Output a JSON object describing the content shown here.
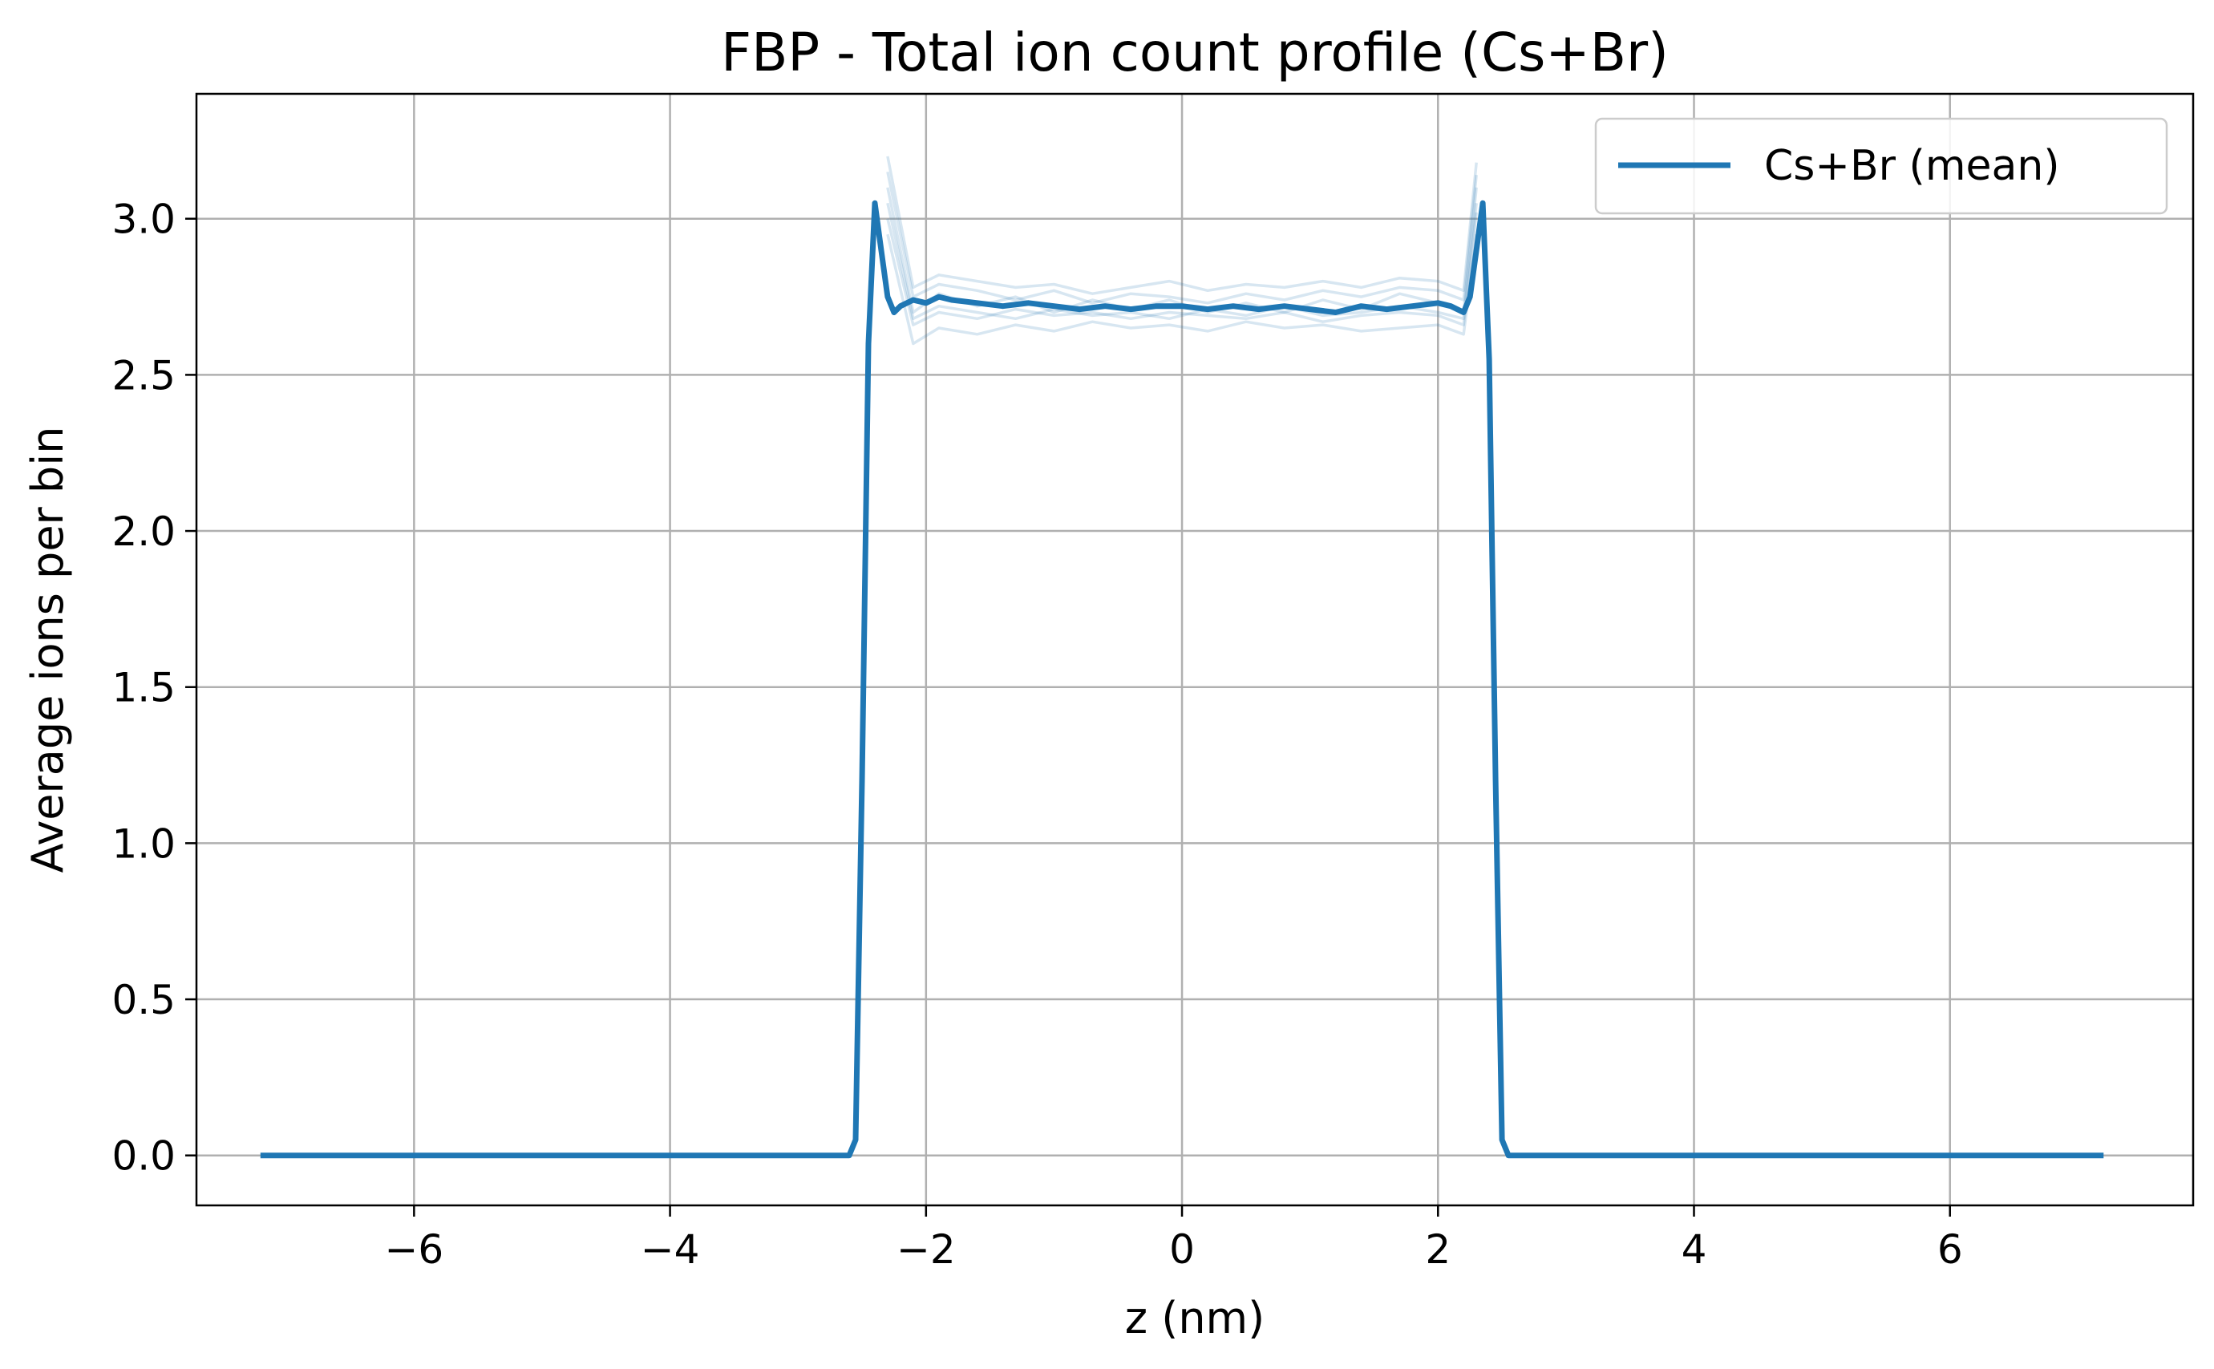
{
  "chart_data": {
    "type": "line",
    "title": "FBP - Total ion count profile (Cs+Br)",
    "xlabel": "z (nm)",
    "ylabel": "Average ions per bin",
    "xlim": [
      -7.7,
      7.9
    ],
    "ylim": [
      -0.16,
      3.4
    ],
    "xticks": [
      -6,
      -4,
      -2,
      0,
      2,
      4,
      6
    ],
    "xtick_labels": [
      "−6",
      "−4",
      "−2",
      "0",
      "2",
      "4",
      "6"
    ],
    "yticks": [
      0.0,
      0.5,
      1.0,
      1.5,
      2.0,
      2.5,
      3.0
    ],
    "ytick_labels": [
      "0.0",
      "0.5",
      "1.0",
      "1.5",
      "2.0",
      "2.5",
      "3.0"
    ],
    "grid": true,
    "legend": {
      "placement": "top-right",
      "entries": [
        "Cs+Br (mean)"
      ]
    },
    "series": [
      {
        "name": "Cs+Br (mean)",
        "color": "#1f77b4",
        "x": [
          -7.2,
          -2.6,
          -2.55,
          -2.5,
          -2.45,
          -2.4,
          -2.35,
          -2.3,
          -2.25,
          -2.2,
          -2.1,
          -2.0,
          -1.9,
          -1.8,
          -1.6,
          -1.4,
          -1.2,
          -1.0,
          -0.8,
          -0.6,
          -0.4,
          -0.2,
          0.0,
          0.2,
          0.4,
          0.6,
          0.8,
          1.0,
          1.2,
          1.4,
          1.6,
          1.8,
          2.0,
          2.1,
          2.2,
          2.25,
          2.3,
          2.35,
          2.4,
          2.45,
          2.5,
          2.55,
          2.6,
          7.2
        ],
        "y": [
          0.0,
          0.0,
          0.05,
          1.2,
          2.6,
          3.05,
          2.9,
          2.75,
          2.7,
          2.72,
          2.74,
          2.73,
          2.75,
          2.74,
          2.73,
          2.72,
          2.73,
          2.72,
          2.71,
          2.72,
          2.71,
          2.72,
          2.72,
          2.71,
          2.72,
          2.71,
          2.72,
          2.71,
          2.7,
          2.72,
          2.71,
          2.72,
          2.73,
          2.72,
          2.7,
          2.75,
          2.9,
          3.05,
          2.55,
          1.2,
          0.05,
          0.0,
          0.0,
          0.0
        ]
      }
    ],
    "faint_color": "#1f77b4",
    "faint_series": [
      {
        "x": [
          -2.3,
          -2.1,
          -1.9,
          -1.6,
          -1.3,
          -1.0,
          -0.7,
          -0.4,
          -0.1,
          0.2,
          0.5,
          0.8,
          1.1,
          1.4,
          1.7,
          2.0,
          2.2,
          2.3
        ],
        "y": [
          3.2,
          2.78,
          2.82,
          2.8,
          2.78,
          2.79,
          2.76,
          2.78,
          2.8,
          2.77,
          2.79,
          2.78,
          2.8,
          2.78,
          2.81,
          2.8,
          2.77,
          3.18
        ]
      },
      {
        "x": [
          -2.3,
          -2.1,
          -1.9,
          -1.6,
          -1.3,
          -1.0,
          -0.7,
          -0.4,
          -0.1,
          0.2,
          0.5,
          0.8,
          1.1,
          1.4,
          1.7,
          2.0,
          2.2,
          2.3
        ],
        "y": [
          2.95,
          2.6,
          2.65,
          2.63,
          2.66,
          2.64,
          2.67,
          2.65,
          2.66,
          2.64,
          2.67,
          2.65,
          2.66,
          2.64,
          2.65,
          2.66,
          2.63,
          2.95
        ]
      },
      {
        "x": [
          -2.3,
          -2.1,
          -1.9,
          -1.6,
          -1.3,
          -1.0,
          -0.7,
          -0.4,
          -0.1,
          0.2,
          0.5,
          0.8,
          1.1,
          1.4,
          1.7,
          2.0,
          2.2,
          2.3
        ],
        "y": [
          3.1,
          2.7,
          2.76,
          2.72,
          2.75,
          2.7,
          2.74,
          2.71,
          2.74,
          2.7,
          2.73,
          2.7,
          2.74,
          2.71,
          2.76,
          2.73,
          2.7,
          3.1
        ]
      },
      {
        "x": [
          -2.3,
          -2.1,
          -1.9,
          -1.6,
          -1.3,
          -1.0,
          -0.7,
          -0.4,
          -0.1,
          0.2,
          0.5,
          0.8,
          1.1,
          1.4,
          1.7,
          2.0,
          2.2,
          2.3
        ],
        "y": [
          3.0,
          2.66,
          2.7,
          2.68,
          2.71,
          2.69,
          2.7,
          2.68,
          2.7,
          2.69,
          2.68,
          2.7,
          2.67,
          2.69,
          2.7,
          2.69,
          2.66,
          3.02
        ]
      },
      {
        "x": [
          -2.3,
          -2.1,
          -1.9,
          -1.6,
          -1.3,
          -1.0,
          -0.7,
          -0.4,
          -0.1,
          0.2,
          0.5,
          0.8,
          1.1,
          1.4,
          1.7,
          2.0,
          2.2,
          2.3
        ],
        "y": [
          3.15,
          2.75,
          2.79,
          2.77,
          2.74,
          2.77,
          2.73,
          2.76,
          2.75,
          2.73,
          2.76,
          2.74,
          2.77,
          2.75,
          2.78,
          2.77,
          2.74,
          3.14
        ]
      },
      {
        "x": [
          -2.3,
          -2.1,
          -1.9,
          -1.6,
          -1.3,
          -1.0,
          -0.7,
          -0.4,
          -0.1,
          0.2,
          0.5,
          0.8,
          1.1,
          1.4,
          1.7,
          2.0,
          2.2,
          2.3
        ],
        "y": [
          3.05,
          2.68,
          2.72,
          2.7,
          2.68,
          2.71,
          2.69,
          2.7,
          2.68,
          2.71,
          2.69,
          2.72,
          2.69,
          2.7,
          2.72,
          2.7,
          2.68,
          3.05
        ]
      }
    ]
  }
}
